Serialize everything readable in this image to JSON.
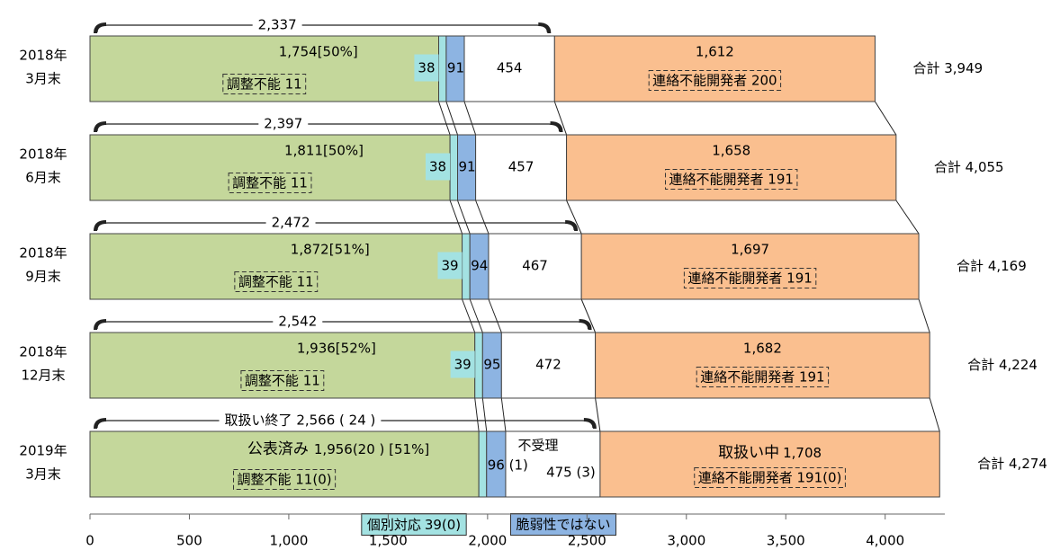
{
  "chart_data": {
    "type": "stacked-bar-horizontal",
    "categories": [
      [
        "2018年",
        "3月末"
      ],
      [
        "2018年",
        "6月末"
      ],
      [
        "2018年",
        "9月末"
      ],
      [
        "2018年",
        "12月末"
      ],
      [
        "2019年",
        "3月末"
      ]
    ],
    "series": [
      {
        "name": "公表済み",
        "color": "#c4d79b",
        "values": [
          1754,
          1811,
          1872,
          1936,
          1956
        ],
        "value_labels": [
          "1,754[50%]",
          "1,811[50%]",
          "1,872[51%]",
          "1,936[52%]",
          "1,956(20 ) [51%]"
        ]
      },
      {
        "name": "個別対応",
        "color": "#a3e2e2",
        "values": [
          38,
          38,
          39,
          39,
          39
        ],
        "value_labels": [
          "38",
          "38",
          "39",
          "39",
          "39(0)"
        ]
      },
      {
        "name": "脆弱性ではない",
        "color": "#8db4e2",
        "values": [
          91,
          91,
          94,
          95,
          96
        ],
        "value_labels": [
          "91",
          "91",
          "94",
          "95",
          "96 (1)"
        ]
      },
      {
        "name": "不受理",
        "color": "#ffffff",
        "values": [
          454,
          457,
          467,
          472,
          475
        ],
        "value_labels": [
          "454",
          "457",
          "467",
          "472",
          "475 (3)"
        ]
      },
      {
        "name": "取扱い中",
        "color": "#fabf8f",
        "values": [
          1612,
          1658,
          1697,
          1682,
          1708
        ],
        "value_labels": [
          "1,612",
          "1,658",
          "1,697",
          "1,682",
          "1,708"
        ]
      }
    ],
    "closed": [
      {
        "value": 2337,
        "label": "2,337"
      },
      {
        "value": 2397,
        "label": "2,397"
      },
      {
        "value": 2472,
        "label": "2,472"
      },
      {
        "value": 2542,
        "label": "2,542"
      },
      {
        "value": 2566,
        "label": "取扱い終了 2,566 ( 24 )"
      }
    ],
    "totals": [
      {
        "value": 3949,
        "label": "合計 3,949"
      },
      {
        "value": 4055,
        "label": "合計 4,055"
      },
      {
        "value": 4169,
        "label": "合計 4,169"
      },
      {
        "value": 4224,
        "label": "合計 4,224"
      },
      {
        "value": 4274,
        "label": "合計 4,274"
      }
    ],
    "unadjustable": [
      "調整不能 11",
      "調整不能 11",
      "調整不能 11",
      "調整不能 11",
      "調整不能 11(0)"
    ],
    "unreachable": [
      "連絡不能開発者 200",
      "連絡不能開発者 191",
      "連絡不能開発者 191",
      "連絡不能開発者 191",
      "連絡不能開発者 191(0)"
    ],
    "xlim": [
      0,
      4300
    ],
    "xticks": [
      0,
      500,
      {
        "value": 1000,
        "label": "1,000"
      },
      {
        "value": 1500,
        "label": "1,500"
      },
      {
        "value": 2000,
        "label": "2,000"
      },
      {
        "value": 2500,
        "label": "2,500"
      },
      {
        "value": 3000,
        "label": "3,000"
      },
      {
        "value": 3500,
        "label": "3,500"
      },
      {
        "value": 4000,
        "label": "4,000"
      }
    ]
  }
}
